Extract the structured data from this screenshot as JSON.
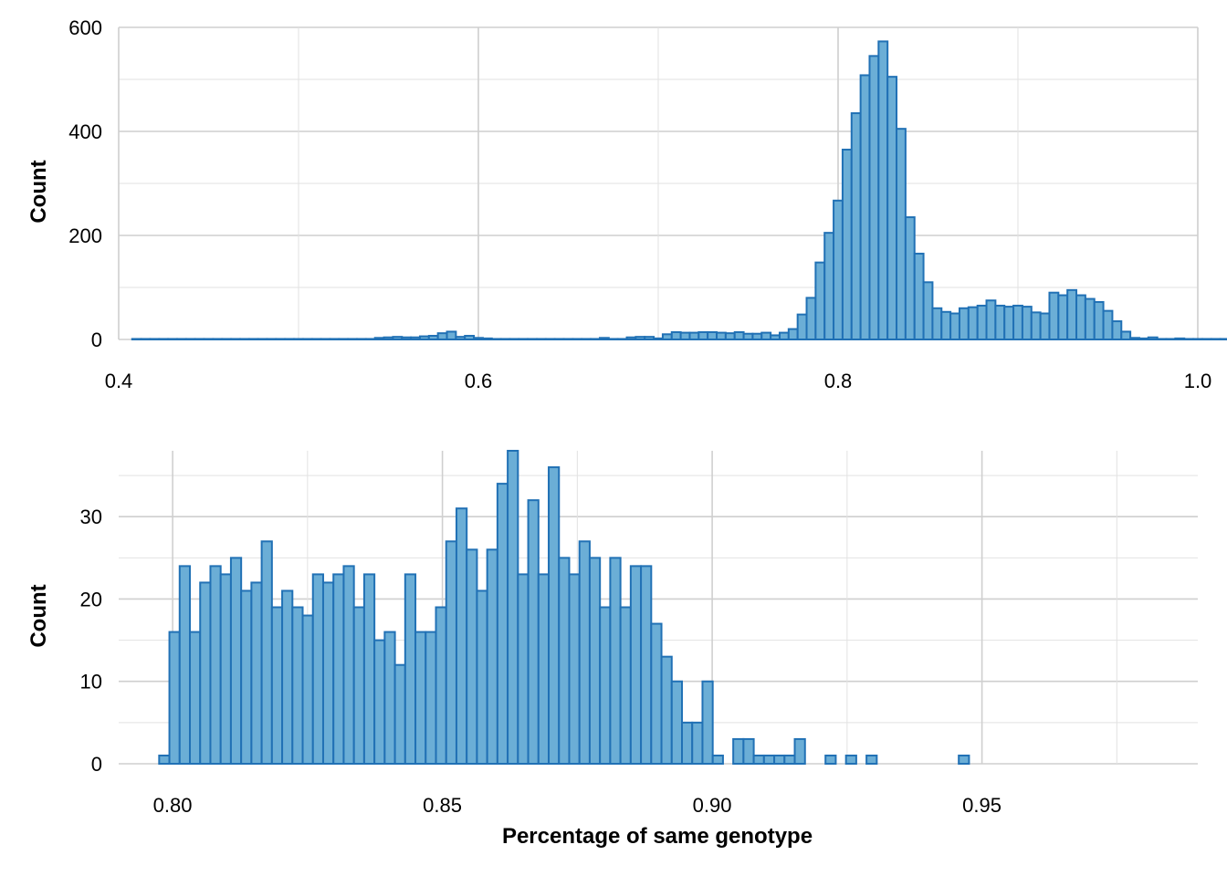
{
  "chart_data": [
    {
      "type": "bar",
      "subtype": "histogram",
      "xlabel": "",
      "ylabel": "Count",
      "xlim": [
        0.4,
        1.0
      ],
      "ylim": [
        0,
        600
      ],
      "x_ticks": [
        0.4,
        0.6,
        0.8,
        1.0
      ],
      "x_tick_labels": [
        "0.4",
        "0.6",
        "0.8",
        "1.0"
      ],
      "y_ticks": [
        0,
        200,
        400,
        600
      ],
      "y_tick_labels": [
        "0",
        "200",
        "400",
        "600"
      ],
      "grid": true,
      "legend": "none",
      "bin_width": 0.005,
      "bin_start": 0.4075,
      "values": [
        1,
        1,
        1,
        1,
        1,
        1,
        1,
        1,
        1,
        1,
        1,
        1,
        1,
        1,
        1,
        1,
        1,
        1,
        1,
        1,
        1,
        1,
        1,
        1,
        1,
        1,
        1,
        3,
        4,
        5,
        4,
        4,
        6,
        7,
        12,
        15,
        5,
        7,
        3,
        2,
        1,
        1,
        1,
        1,
        1,
        1,
        1,
        1,
        1,
        1,
        1,
        1,
        3,
        1,
        1,
        4,
        5,
        5,
        2,
        10,
        14,
        13,
        13,
        14,
        14,
        13,
        12,
        14,
        11,
        11,
        13,
        8,
        13,
        20,
        48,
        80,
        148,
        205,
        267,
        365,
        435,
        508,
        545,
        573,
        505,
        405,
        235,
        165,
        110,
        60,
        53,
        50,
        60,
        62,
        65,
        75,
        65,
        63,
        65,
        63,
        52,
        50,
        90,
        85,
        95,
        85,
        78,
        72,
        55,
        35,
        15,
        3,
        2,
        4,
        1,
        1,
        2,
        1,
        1,
        1,
        1,
        1,
        1,
        1,
        1,
        1,
        1,
        1,
        1,
        1,
        1,
        1,
        1,
        2
      ]
    },
    {
      "type": "bar",
      "subtype": "histogram",
      "xlabel": "Percentage of same genotype",
      "ylabel": "Count",
      "xlim": [
        0.79,
        0.99
      ],
      "ylim": [
        0,
        38
      ],
      "x_ticks": [
        0.8,
        0.85,
        0.9,
        0.95
      ],
      "x_tick_labels": [
        "0.80",
        "0.85",
        "0.90",
        "0.95"
      ],
      "y_ticks": [
        0,
        10,
        20,
        30
      ],
      "y_tick_labels": [
        "0",
        "10",
        "20",
        "30"
      ],
      "grid": true,
      "legend": "none",
      "bin_width": 0.0019,
      "bin_start": 0.7975,
      "values": [
        1,
        16,
        24,
        16,
        22,
        24,
        23,
        25,
        21,
        22,
        27,
        19,
        21,
        19,
        18,
        23,
        22,
        23,
        24,
        19,
        23,
        15,
        16,
        12,
        23,
        16,
        16,
        19,
        27,
        31,
        26,
        21,
        26,
        34,
        38,
        23,
        32,
        23,
        36,
        25,
        23,
        27,
        25,
        19,
        25,
        19,
        24,
        24,
        17,
        13,
        10,
        5,
        5,
        10,
        1,
        0,
        3,
        3,
        1,
        1,
        1,
        1,
        3,
        0,
        0,
        1,
        0,
        1,
        0,
        1,
        0,
        0,
        0,
        0,
        0,
        0,
        0,
        0,
        1,
        0,
        0,
        0,
        0,
        0,
        0,
        0,
        0,
        0,
        0,
        0,
        0,
        0,
        0,
        0,
        0,
        0,
        0,
        0,
        0,
        0,
        0,
        0,
        0,
        0,
        0,
        0,
        0,
        0,
        0,
        0,
        0,
        0,
        0,
        0,
        0,
        0,
        0,
        0,
        0,
        0,
        0,
        0,
        0,
        0,
        0,
        0,
        0,
        0,
        0,
        0,
        0,
        0,
        0,
        0,
        0,
        0,
        0,
        0,
        0,
        2
      ]
    }
  ],
  "colors": {
    "bar_fill": "#6baed6",
    "bar_stroke": "#2171b5",
    "grid_major": "#cfcfcf",
    "grid_minor": "#e2e2e2"
  }
}
